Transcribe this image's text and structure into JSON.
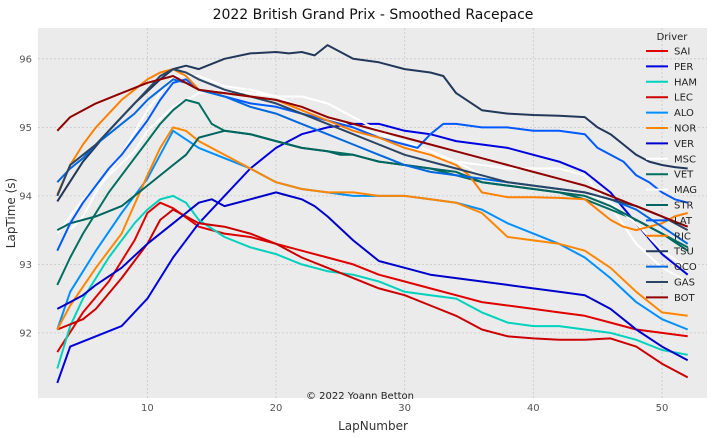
{
  "chart_data": {
    "type": "line",
    "title": "2022 British Grand Prix - Smoothed Racepace",
    "xlabel": "LapNumber",
    "ylabel": "LapTime (s)",
    "xlim": [
      1.5,
      53.5
    ],
    "ylim": [
      91.05,
      96.45
    ],
    "xticks": [
      10,
      20,
      30,
      40,
      50
    ],
    "yticks": [
      92,
      93,
      94,
      95,
      96
    ],
    "grid": true,
    "background": "#ebebeb",
    "legend_title": "Driver",
    "legend_position": "top-right",
    "credit": "© 2022 Yoann Betton",
    "series": [
      {
        "name": "SAI",
        "color": "#e00000",
        "x": [
          3,
          5,
          7,
          9,
          10,
          11,
          12,
          14,
          16,
          18,
          20,
          22,
          24,
          26,
          28,
          30,
          32,
          34,
          36,
          38,
          40,
          42,
          44,
          46,
          48,
          50,
          52
        ],
        "y": [
          91.72,
          92.3,
          92.75,
          93.35,
          93.75,
          93.9,
          93.82,
          93.55,
          93.45,
          93.4,
          93.3,
          93.2,
          93.1,
          93.0,
          92.85,
          92.75,
          92.65,
          92.55,
          92.45,
          92.4,
          92.35,
          92.3,
          92.25,
          92.15,
          92.05,
          92.0,
          91.95
        ]
      },
      {
        "name": "PER",
        "color": "#0000e0",
        "x": [
          3,
          4,
          6,
          8,
          10,
          12,
          14,
          16,
          18,
          20,
          22,
          24,
          26,
          28,
          30,
          32,
          34,
          36,
          38,
          40,
          42,
          44,
          46,
          48,
          50,
          52
        ],
        "y": [
          91.27,
          91.8,
          91.95,
          92.1,
          92.5,
          93.1,
          93.6,
          94.0,
          94.4,
          94.7,
          94.9,
          95.0,
          95.05,
          95.05,
          94.95,
          94.9,
          94.8,
          94.75,
          94.7,
          94.6,
          94.5,
          94.35,
          94.05,
          93.6,
          93.15,
          92.85
        ]
      },
      {
        "name": "HAM",
        "color": "#00d2be",
        "x": [
          3,
          4,
          5,
          6,
          7,
          8,
          9,
          10,
          11,
          12,
          13,
          14,
          16,
          18,
          20,
          22,
          24,
          26,
          28,
          30,
          32,
          34,
          36,
          38,
          40,
          42,
          44,
          46,
          48,
          50,
          52
        ],
        "y": [
          91.48,
          92.1,
          92.5,
          92.8,
          93.1,
          93.35,
          93.6,
          93.8,
          93.95,
          94.0,
          93.9,
          93.65,
          93.4,
          93.25,
          93.15,
          93.0,
          92.9,
          92.85,
          92.75,
          92.6,
          92.55,
          92.5,
          92.3,
          92.15,
          92.1,
          92.1,
          92.05,
          92.0,
          91.9,
          91.75,
          91.68
        ]
      },
      {
        "name": "LEC",
        "color": "#cc0000",
        "x": [
          3,
          5,
          6,
          8,
          10,
          11,
          12,
          13,
          14,
          16,
          18,
          20,
          22,
          24,
          26,
          28,
          30,
          32,
          34,
          36,
          38,
          40,
          42,
          44,
          46,
          48,
          50,
          52
        ],
        "y": [
          92.05,
          92.2,
          92.35,
          92.8,
          93.3,
          93.65,
          93.8,
          93.7,
          93.6,
          93.55,
          93.45,
          93.3,
          93.1,
          92.95,
          92.8,
          92.65,
          92.55,
          92.4,
          92.25,
          92.05,
          91.95,
          91.92,
          91.9,
          91.9,
          91.92,
          91.8,
          91.55,
          91.35
        ]
      },
      {
        "name": "ALO",
        "color": "#0090ff",
        "x": [
          3,
          4,
          6,
          8,
          10,
          11,
          12,
          14,
          16,
          18,
          20,
          22,
          24,
          26,
          28,
          30,
          32,
          34,
          36,
          38,
          40,
          42,
          44,
          46,
          48,
          50,
          52
        ],
        "y": [
          92.05,
          92.6,
          93.2,
          93.75,
          94.25,
          94.6,
          94.95,
          94.7,
          94.55,
          94.4,
          94.2,
          94.1,
          94.05,
          94.0,
          94.0,
          94.0,
          93.95,
          93.9,
          93.8,
          93.6,
          93.45,
          93.3,
          93.1,
          92.8,
          92.45,
          92.2,
          92.05
        ]
      },
      {
        "name": "NOR",
        "color": "#ff8700",
        "x": [
          3,
          4,
          6,
          8,
          10,
          11,
          12,
          13,
          14,
          16,
          18,
          20,
          22,
          24,
          26,
          28,
          30,
          32,
          34,
          36,
          38,
          40,
          42,
          44,
          46,
          48,
          50,
          52
        ],
        "y": [
          92.05,
          92.4,
          92.95,
          93.45,
          94.3,
          94.7,
          95.0,
          94.95,
          94.8,
          94.6,
          94.4,
          94.2,
          94.1,
          94.05,
          94.05,
          94.0,
          94.0,
          93.95,
          93.9,
          93.75,
          93.4,
          93.35,
          93.3,
          93.2,
          92.95,
          92.6,
          92.3,
          92.25
        ]
      },
      {
        "name": "VER",
        "color": "#0000cc",
        "x": [
          3,
          4,
          5,
          6,
          8,
          10,
          12,
          13,
          14,
          15,
          16,
          18,
          20,
          21,
          22,
          23,
          24,
          26,
          28,
          30,
          32,
          34,
          36,
          38,
          40,
          42,
          44,
          46,
          48,
          50,
          52
        ],
        "y": [
          92.35,
          92.45,
          92.55,
          92.7,
          92.95,
          93.3,
          93.6,
          93.75,
          93.9,
          93.95,
          93.85,
          93.95,
          94.05,
          94.0,
          93.95,
          93.85,
          93.7,
          93.35,
          93.05,
          92.95,
          92.85,
          92.8,
          92.75,
          92.7,
          92.65,
          92.6,
          92.55,
          92.35,
          92.05,
          91.8,
          91.6
        ]
      },
      {
        "name": "MSC",
        "color": "#ffffff",
        "x": [
          3,
          5,
          7,
          9,
          10,
          12,
          14,
          16,
          18,
          20,
          22,
          24,
          26,
          28,
          30,
          32,
          34,
          36,
          38,
          40,
          42,
          44,
          46,
          48,
          50,
          52
        ],
        "y": [
          93.45,
          93.95,
          94.3,
          94.65,
          94.95,
          95.3,
          95.5,
          95.55,
          95.5,
          95.45,
          95.45,
          95.35,
          95.15,
          94.95,
          94.75,
          94.6,
          94.5,
          94.45,
          94.4,
          94.4,
          94.4,
          94.3,
          93.85,
          93.3,
          92.95,
          92.75
        ]
      },
      {
        "name": "VET",
        "color": "#006f62",
        "x": [
          3,
          4,
          5,
          6,
          7,
          8,
          9,
          10,
          11,
          12,
          13,
          14,
          15,
          16,
          18,
          20,
          22,
          24,
          26,
          28,
          30,
          32,
          34,
          36,
          38,
          40,
          42,
          44,
          46,
          48,
          50,
          52
        ],
        "y": [
          92.7,
          93.1,
          93.45,
          93.75,
          94.05,
          94.3,
          94.55,
          94.8,
          95.05,
          95.25,
          95.4,
          95.35,
          95.05,
          94.95,
          94.9,
          94.8,
          94.7,
          94.65,
          94.6,
          94.5,
          94.45,
          94.4,
          94.3,
          94.2,
          94.15,
          94.1,
          94.05,
          93.95,
          93.8,
          93.65,
          93.45,
          93.25
        ]
      },
      {
        "name": "MAG",
        "color": "#ffffff",
        "x": [
          4,
          5,
          6,
          8,
          10,
          12,
          14,
          16,
          18,
          20,
          22,
          24,
          26,
          28,
          30,
          32,
          34,
          36,
          38,
          40,
          42,
          44,
          46,
          48,
          50,
          52
        ],
        "y": [
          93.5,
          93.7,
          94.05,
          94.6,
          95.25,
          95.75,
          95.75,
          95.6,
          95.55,
          95.45,
          95.3,
          95.15,
          95.0,
          94.9,
          94.8,
          94.65,
          94.5,
          94.3,
          94.2,
          94.15,
          94.1,
          94.05,
          93.9,
          93.6,
          93.2,
          92.95
        ]
      },
      {
        "name": "STR",
        "color": "#00665f",
        "x": [
          3,
          4,
          5,
          6,
          8,
          10,
          12,
          13,
          14,
          16,
          18,
          20,
          22,
          24,
          25,
          26,
          28,
          30,
          32,
          34,
          36,
          38,
          40,
          42,
          44,
          46,
          48,
          50,
          52
        ],
        "y": [
          93.5,
          93.6,
          93.65,
          93.7,
          93.85,
          94.15,
          94.45,
          94.6,
          94.85,
          94.95,
          94.9,
          94.8,
          94.7,
          94.65,
          94.6,
          94.6,
          94.5,
          94.45,
          94.4,
          94.35,
          94.2,
          94.15,
          94.1,
          94.05,
          94.0,
          93.85,
          93.65,
          93.45,
          93.2
        ]
      },
      {
        "name": "LAT",
        "color": "#005aff",
        "x": [
          3,
          4,
          5,
          6,
          7,
          8,
          9,
          10,
          11,
          12,
          13,
          14,
          16,
          18,
          20,
          22,
          24,
          26,
          28,
          30,
          31,
          32,
          33,
          34,
          36,
          38,
          40,
          42,
          44,
          45,
          46,
          47,
          48,
          49,
          50,
          51,
          52
        ],
        "y": [
          93.2,
          93.6,
          93.9,
          94.15,
          94.4,
          94.6,
          94.85,
          95.1,
          95.4,
          95.65,
          95.7,
          95.55,
          95.45,
          95.35,
          95.3,
          95.2,
          95.1,
          95.0,
          94.85,
          94.75,
          94.7,
          94.9,
          95.05,
          95.05,
          95.0,
          95.0,
          94.95,
          94.95,
          94.9,
          94.7,
          94.6,
          94.5,
          94.3,
          94.2,
          94.05,
          93.95,
          93.9
        ]
      },
      {
        "name": "RIC",
        "color": "#ff8000",
        "x": [
          3,
          4,
          5,
          6,
          7,
          8,
          9,
          10,
          11,
          12,
          13,
          14,
          15,
          16,
          18,
          20,
          22,
          24,
          26,
          28,
          30,
          32,
          34,
          35,
          36,
          38,
          40,
          42,
          44,
          46,
          47,
          48,
          49,
          50,
          51,
          52
        ],
        "y": [
          94.02,
          94.45,
          94.75,
          95.0,
          95.2,
          95.4,
          95.55,
          95.7,
          95.8,
          95.85,
          95.75,
          95.55,
          95.5,
          95.5,
          95.45,
          95.4,
          95.25,
          95.1,
          94.95,
          94.85,
          94.7,
          94.6,
          94.45,
          94.3,
          94.05,
          93.98,
          93.98,
          93.97,
          93.95,
          93.65,
          93.55,
          93.5,
          93.55,
          93.6,
          93.7,
          93.75
        ]
      },
      {
        "name": "TSU",
        "color": "#23375a",
        "x": [
          3,
          5,
          7,
          9,
          11,
          12,
          13,
          14,
          16,
          18,
          20,
          21,
          22,
          23,
          24,
          26,
          28,
          30,
          32,
          33,
          34,
          36,
          38,
          40,
          42,
          44,
          45,
          46,
          47,
          48,
          49,
          50,
          51,
          52
        ],
        "y": [
          93.92,
          94.5,
          94.95,
          95.35,
          95.7,
          95.85,
          95.9,
          95.85,
          96.0,
          96.08,
          96.1,
          96.08,
          96.1,
          96.05,
          96.2,
          96.0,
          95.95,
          95.85,
          95.8,
          95.75,
          95.5,
          95.25,
          95.2,
          95.18,
          95.17,
          95.15,
          95.0,
          94.9,
          94.75,
          94.6,
          94.5,
          94.45,
          94.42,
          94.4
        ]
      },
      {
        "name": "OCO",
        "color": "#0068e0",
        "x": [
          3,
          4,
          5,
          6,
          7,
          8,
          9,
          10,
          11,
          12,
          13,
          14,
          16,
          18,
          20,
          22,
          24,
          26,
          28,
          30,
          32,
          34,
          36,
          38,
          40,
          42,
          44,
          46,
          48,
          50,
          52
        ],
        "y": [
          94.2,
          94.4,
          94.55,
          94.75,
          94.9,
          95.05,
          95.2,
          95.4,
          95.55,
          95.7,
          95.65,
          95.55,
          95.45,
          95.3,
          95.2,
          95.05,
          94.9,
          94.75,
          94.6,
          94.45,
          94.35,
          94.3,
          94.25,
          94.2,
          94.15,
          94.1,
          94.05,
          93.95,
          93.8,
          93.55,
          93.3
        ]
      },
      {
        "name": "GAS",
        "color": "#2b4562",
        "x": [
          3,
          4,
          5,
          6,
          7,
          8,
          9,
          10,
          11,
          12,
          13,
          14,
          16,
          18,
          20,
          22,
          24,
          26,
          28,
          30,
          32,
          34,
          36,
          38,
          40,
          42,
          44,
          46,
          48,
          50,
          52
        ],
        "y": [
          94.0,
          94.45,
          94.6,
          94.75,
          94.95,
          95.15,
          95.35,
          95.55,
          95.75,
          95.85,
          95.8,
          95.7,
          95.55,
          95.45,
          95.35,
          95.2,
          95.05,
          94.9,
          94.75,
          94.6,
          94.5,
          94.4,
          94.3,
          94.2,
          94.15,
          94.1,
          94.05,
          93.95,
          93.85,
          93.7,
          93.5
        ]
      },
      {
        "name": "BOT",
        "color": "#900000",
        "x": [
          3,
          4,
          6,
          8,
          10,
          12,
          14,
          16,
          18,
          20,
          22,
          24,
          26,
          28,
          30,
          32,
          34,
          36,
          38,
          40,
          42,
          44,
          46,
          48,
          50,
          52
        ],
        "y": [
          94.95,
          95.15,
          95.35,
          95.5,
          95.65,
          95.75,
          95.55,
          95.5,
          95.45,
          95.4,
          95.3,
          95.15,
          95.05,
          94.95,
          94.85,
          94.75,
          94.65,
          94.55,
          94.45,
          94.35,
          94.25,
          94.15,
          94.0,
          93.85,
          93.7,
          93.55
        ]
      }
    ]
  }
}
